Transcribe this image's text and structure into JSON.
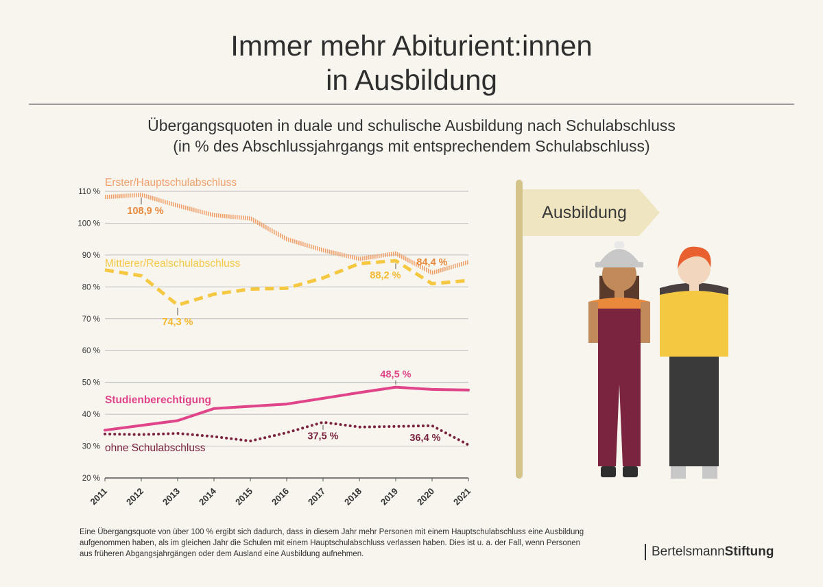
{
  "header": {
    "title_line1": "Immer mehr Abiturient:innen",
    "title_line2": "in Ausbildung",
    "subtitle_line1": "Übergangsquoten in duale und schulische Ausbildung nach Schulabschluss",
    "subtitle_line2": "(in % des Abschlussjahrgangs mit entsprechendem Schulabschluss)"
  },
  "chart_data": {
    "type": "line",
    "title": "Übergangsquoten in duale und schulische Ausbildung nach Schulabschluss",
    "ylabel": "in % des Abschlussjahrgangs mit entsprechendem Schulabschluss",
    "xlabel": "",
    "ylim": [
      20,
      110
    ],
    "yticks": [
      "110 %",
      "100 %",
      "90 %",
      "80 %",
      "70 %",
      "60 %",
      "50 %",
      "40 %",
      "30 %",
      "20 %"
    ],
    "ytick_values": [
      110,
      100,
      90,
      80,
      70,
      60,
      50,
      40,
      30,
      20
    ],
    "x": [
      "2011",
      "2012",
      "2013",
      "2014",
      "2015",
      "2016",
      "2017",
      "2018",
      "2019",
      "2020",
      "2021"
    ],
    "grid": true,
    "series": [
      {
        "name": "Erster/Hauptschulabschluss",
        "color": "#f0a06a",
        "style": "hatched",
        "values": [
          108.2,
          108.9,
          105.5,
          102.5,
          101.5,
          95.0,
          91.5,
          88.8,
          90.5,
          84.4,
          87.8
        ],
        "annotations": [
          {
            "index": 1,
            "label": "108,9 %"
          },
          {
            "index": 9,
            "label": "84,4 %"
          }
        ]
      },
      {
        "name": "Mittlerer/Realschulabschluss",
        "color": "#f5c842",
        "style": "dashed",
        "values": [
          85.3,
          83.5,
          74.3,
          77.7,
          79.3,
          79.6,
          82.8,
          87.3,
          88.2,
          81.0,
          82.0
        ],
        "annotations": [
          {
            "index": 2,
            "label": "74,3 %"
          },
          {
            "index": 8,
            "label": "88,2 %"
          }
        ]
      },
      {
        "name": "Studienberechtigung",
        "color": "#e0458a",
        "style": "solid",
        "values": [
          35.0,
          36.5,
          38.0,
          41.8,
          42.5,
          43.2,
          45.0,
          46.8,
          48.5,
          47.8,
          47.6
        ],
        "annotations": [
          {
            "index": 8,
            "label": "48,5 %"
          }
        ]
      },
      {
        "name": "ohne Schulabschluss",
        "color": "#7a2440",
        "style": "dotted",
        "values": [
          33.8,
          33.6,
          34.0,
          33.0,
          31.6,
          34.2,
          37.5,
          36.0,
          36.2,
          36.4,
          30.4
        ],
        "annotations": [
          {
            "index": 6,
            "label": "37,5 %"
          },
          {
            "index": 9,
            "label": "36,4 %"
          }
        ]
      }
    ]
  },
  "illustration": {
    "sign_label": "Ausbildung",
    "pole_color": "#d4c48a",
    "sign_color": "#efe6c1"
  },
  "footnote": {
    "text": "Eine Übergangsquote von über 100 % ergibt sich dadurch, dass in diesem Jahr mehr Personen mit einem Hauptschulabschluss eine Ausbildung aufgenommen haben, als im gleichen Jahr die Schulen mit einem Hauptschulabschluss verlassen haben. Dies ist u. a. der Fall, wenn Personen aus früheren Abgangsjahrgängen oder dem Ausland eine Ausbildung aufnehmen."
  },
  "logo": {
    "part1": "Bertelsmann",
    "part2": "Stiftung"
  }
}
